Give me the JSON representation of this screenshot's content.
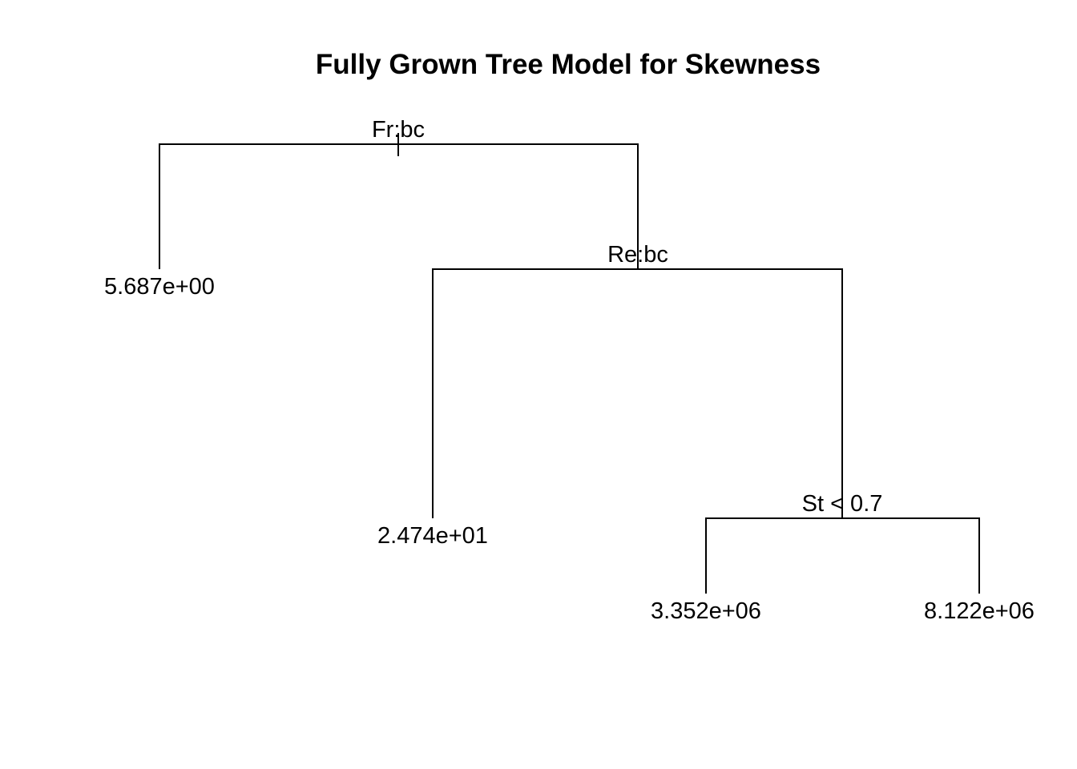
{
  "title": "Fully Grown Tree Model for Skewness",
  "tree": {
    "root": {
      "split": "Fr:bc"
    },
    "left_leaf": {
      "value": "5.687e+00"
    },
    "right_node": {
      "split": "Re:bc"
    },
    "right_left_leaf": {
      "value": "2.474e+01"
    },
    "right_right_node": {
      "split": "St < 0.7"
    },
    "leaf_low": {
      "value": "3.352e+06"
    },
    "leaf_high": {
      "value": "8.122e+06"
    }
  }
}
